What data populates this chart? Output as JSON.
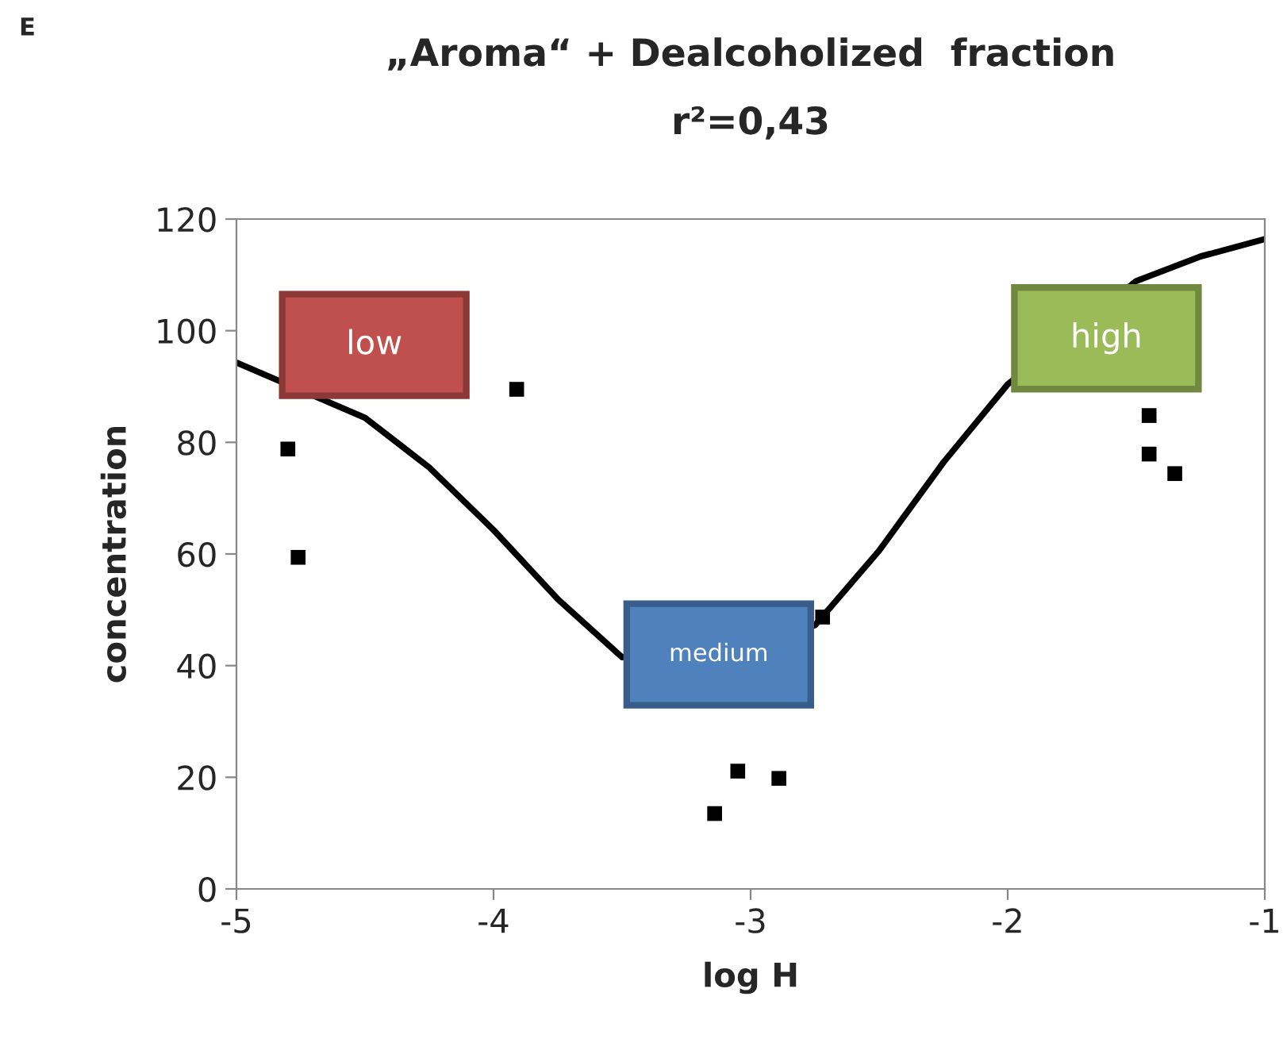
{
  "chart_data": {
    "type": "scatter",
    "title": "„Aroma“ + Dealcoholized  fraction",
    "subtitle": "r²=0,43",
    "xlabel": "log H",
    "ylabel": "concentration",
    "xlim": [
      -5,
      -1
    ],
    "xticks": [
      -5,
      -4,
      -3,
      -2,
      -1
    ],
    "ylim": [
      0,
      120
    ],
    "yticks": [
      0,
      20,
      40,
      60,
      80,
      100,
      120
    ],
    "grid": false,
    "marker": "square",
    "series": [
      {
        "color": "#000000",
        "x": [
          -4.8,
          -4.76,
          -3.91,
          -3.14,
          -3.05,
          -2.89,
          -2.72,
          -1.45,
          -1.45,
          -1.35
        ],
        "values": [
          78.8,
          59.4,
          89.5,
          13.5,
          21.1,
          19.8,
          48.7,
          84.8,
          77.9,
          74.4
        ]
      },
      {
        "type": "line",
        "color": "#000000",
        "marker": "none",
        "line_style": "solid",
        "x": [
          -5,
          -4.5,
          -4.25,
          -4.0,
          -3.75,
          -3.5,
          -3.25,
          -3.0,
          -2.75,
          -2.5,
          -2.25,
          -2.0,
          -1.75,
          -1.5,
          -1.25,
          -1.0
        ],
        "values": [
          94.3,
          84.4,
          75.5,
          64.3,
          51.9,
          41.5,
          null,
          null,
          47.2,
          60.6,
          76.4,
          90.4,
          null,
          108.9,
          113.3,
          116.4
        ]
      }
    ],
    "annotations": [
      "E",
      "low",
      "medium",
      "high"
    ]
  }
}
